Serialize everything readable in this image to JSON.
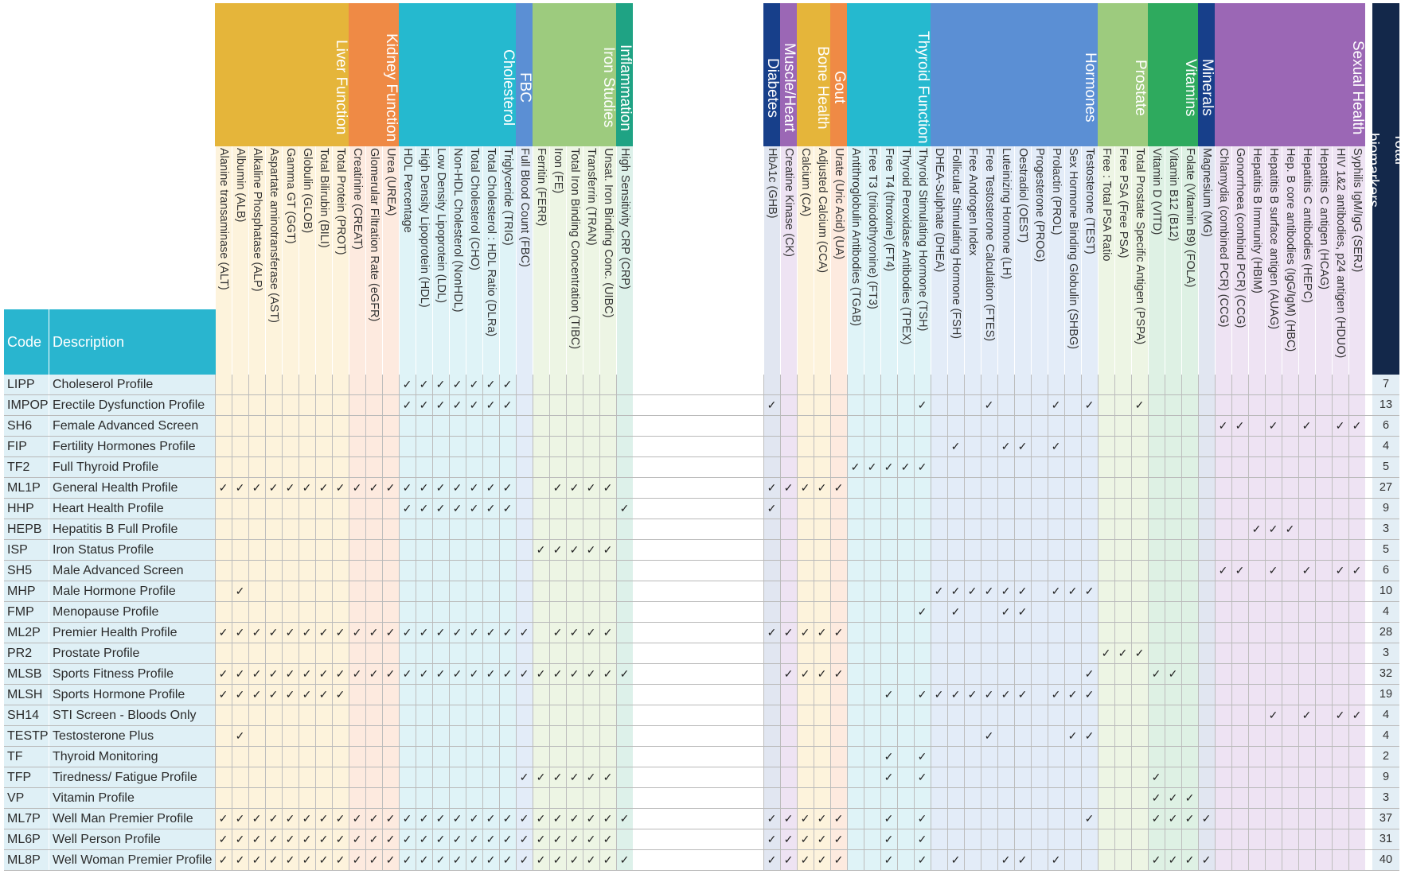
{
  "header": {
    "code": "Code",
    "description": "Description",
    "total_biomarkers": "Total biomarkers"
  },
  "check_mark": "✓",
  "groups": [
    {
      "name": "Liver Function",
      "color": "#E5B53A",
      "bg": "#FDF3DC",
      "cols": [
        "Alanine transaminase (ALT)",
        "Albumin (ALB)",
        "Alkaline Phosphatase (ALP)",
        "Aspartate aminotransferase (AST)",
        "Gamma GT (GGT)",
        "Globulin (GLOB)",
        "Total Bilirubin (BILI)",
        "Total Protein (PROT)"
      ]
    },
    {
      "name": "Kidney Function",
      "color": "#EF8A45",
      "bg": "#FDEADF",
      "cols": [
        "Creatinine (CREAT)",
        "Glomerular Filtration Rate (eGFR)",
        "Urea (UREA)"
      ]
    },
    {
      "name": "Cholesterol",
      "color": "#25B9CF",
      "bg": "#DFF3F7",
      "cols": [
        "HDL Percentage",
        "High Density Lipoprotein (HDL)",
        "Low Density Lipoprotein (LDL)",
        "Non-HDL Cholesterol (NonHDL)",
        "Total Cholesterol (CHO)",
        "Total Cholesterol : HDL Ratio (DLRa)",
        "Triglyceride (TRIG)"
      ]
    },
    {
      "name": "FBC",
      "color": "#5B8FD4",
      "bg": "#E3ECF8",
      "cols": [
        "Full Blood Count (FBC)"
      ]
    },
    {
      "name": "Iron Studies",
      "color": "#9DCB7E",
      "bg": "#EDF5E4",
      "cols": [
        "Ferritin (FERR)",
        "Iron (FE)",
        "Total Iron Binding Concentration (TIBC)",
        "Transferrin (TRAN)",
        "Unsat. Iron Binding Conc. (UIBC)"
      ]
    },
    {
      "name": "Inflammation",
      "color": "#1FA384",
      "bg": "#DDF1EA",
      "cols": [
        "High Sensitivity CRP (CRP)"
      ]
    },
    {
      "name": "",
      "color": "#ffffff",
      "bg": "#ffffff",
      "cols": [],
      "spacer": true
    },
    {
      "name": "Diabetes",
      "color": "#173F8A",
      "bg": "#E1E6F1",
      "cols": [
        "HbA1c (GHB)"
      ]
    },
    {
      "name": "Muscle/Heart Health",
      "color": "#9B67B5",
      "bg": "#EEE3F3",
      "cols": [
        "Creatine Kinase (CK)"
      ]
    },
    {
      "name": "Bone Health",
      "color": "#E5B53A",
      "bg": "#FDF3DC",
      "cols": [
        "Calcium (CA)",
        "Adjusted Calcium (CCA)"
      ]
    },
    {
      "name": "Gout",
      "color": "#EF8A45",
      "bg": "#FDEADF",
      "cols": [
        "Urate (Uric Acid) (UA)"
      ]
    },
    {
      "name": "Thyroid Function",
      "color": "#25B9CF",
      "bg": "#DFF3F7",
      "cols": [
        "Antithroglobulin Antibodies (TGAB)",
        "Free T3 (triiodothyronine) (FT3)",
        "Free T4 (throxine) (FT4)",
        "Thyroid Peroxidase Antibodies (TPEX)",
        "Thyroid Stimulating Hormone (TSH)"
      ]
    },
    {
      "name": "Hormones",
      "color": "#5B8FD4",
      "bg": "#E3ECF8",
      "cols": [
        "DHEA-Sulphate (DHEA)",
        "Follicular Stimulating Hormone (FSH)",
        "Free Androgen Index",
        "Free Testosterone Calculation (FTES)",
        "Luteinizing Hormone (LH)",
        "Oestradiol (OEST)",
        "Progesterone (PROG)",
        "Prolactin (PROL)",
        "Sex Hormone Binding Globulin (SHBG)",
        "Testosterone (TEST)"
      ]
    },
    {
      "name": "Prostate",
      "color": "#9DCB7E",
      "bg": "#EDF5E4",
      "cols": [
        "Free : Total PSA Ratio",
        "Free PSA (Free PSA)",
        "Total Prostate Specific Antigen (PSPA)"
      ]
    },
    {
      "name": "Vitamins",
      "color": "#2EAA5E",
      "bg": "#DEF1E4",
      "cols": [
        "Vitamin D (VITD)",
        "Vitamin B12 (B12)",
        "Folate (Vitamin B9) (FOLA)"
      ]
    },
    {
      "name": "Minerals",
      "color": "#173F8A",
      "bg": "#E1E6F1",
      "cols": [
        "Magnesium (MG)"
      ]
    },
    {
      "name": "Sexual Health",
      "color": "#9B67B5",
      "bg": "#EEE3F3",
      "cols": [
        "Chlamydia (combined PCR) (CCG)",
        "Gonorrhoea (combind PCR) (CCG)",
        "Hepatitis B Immunity (HBIM)",
        "Hepatitis B surface antigen (AUAG)",
        "Hep. B core antibodies (IgG/IgM) (HBC)",
        "Hepatitis C antibodies (HEPC)",
        "Hepatitis C antigen (HCAG)",
        "HIV 1&2 antibodies, p24 antigen (HDUO)",
        "Syphilis IgM/IgG (SERJ)"
      ]
    }
  ],
  "profiles": [
    {
      "code": "LIPP",
      "description": "Choleserol Profile",
      "total": "7",
      "checks": [
        11,
        12,
        13,
        14,
        15,
        16,
        17
      ]
    },
    {
      "code": "IMPOP",
      "description": "Erectile Dysfunction Profile",
      "total": "13",
      "checks": [
        11,
        12,
        13,
        14,
        15,
        16,
        17,
        25,
        34,
        38,
        42,
        44,
        47
      ]
    },
    {
      "code": "SH6",
      "description": "Female Advanced Screen",
      "total": "6",
      "checks": [
        52,
        53,
        55,
        57,
        59,
        60
      ]
    },
    {
      "code": "FIP",
      "description": "Fertility Hormones Profile",
      "total": "4",
      "checks": [
        36,
        39,
        40,
        42
      ]
    },
    {
      "code": "TF2",
      "description": "Full Thyroid Profile",
      "total": "5",
      "checks": [
        30,
        31,
        32,
        33,
        34
      ]
    },
    {
      "code": "ML1P",
      "description": "General Health Profile",
      "total": "27",
      "checks": [
        0,
        1,
        2,
        3,
        4,
        5,
        6,
        7,
        8,
        9,
        10,
        11,
        12,
        13,
        14,
        15,
        16,
        17,
        20,
        21,
        22,
        23,
        25,
        26,
        27,
        28,
        29
      ]
    },
    {
      "code": "HHP",
      "description": "Heart Health Profile",
      "total": "9",
      "checks": [
        11,
        12,
        13,
        14,
        15,
        16,
        17,
        24,
        25
      ]
    },
    {
      "code": "HEPB",
      "description": "Hepatitis B Full Profile",
      "total": "3",
      "checks": [
        54,
        55,
        56
      ]
    },
    {
      "code": "ISP",
      "description": "Iron Status Profile",
      "total": "5",
      "checks": [
        19,
        20,
        21,
        22,
        23
      ]
    },
    {
      "code": "SH5",
      "description": "Male Advanced Screen",
      "total": "6",
      "checks": [
        52,
        53,
        55,
        57,
        59,
        60
      ]
    },
    {
      "code": "MHP",
      "description": "Male Hormone Profile",
      "total": "10",
      "checks": [
        1,
        35,
        36,
        37,
        38,
        39,
        40,
        42,
        43,
        44
      ]
    },
    {
      "code": "FMP",
      "description": "Menopause Profile",
      "total": "4",
      "checks": [
        34,
        36,
        39,
        40
      ]
    },
    {
      "code": "ML2P",
      "description": "Premier Health Profile",
      "total": "28",
      "checks": [
        0,
        1,
        2,
        3,
        4,
        5,
        6,
        7,
        8,
        9,
        10,
        11,
        12,
        13,
        14,
        15,
        16,
        17,
        18,
        20,
        21,
        22,
        23,
        25,
        26,
        27,
        28,
        29
      ]
    },
    {
      "code": "PR2",
      "description": "Prostate Profile",
      "total": "3",
      "checks": [
        45,
        46,
        47
      ]
    },
    {
      "code": "MLSB",
      "description": "Sports Fitness Profile",
      "total": "32",
      "checks": [
        0,
        1,
        2,
        3,
        4,
        5,
        6,
        7,
        8,
        9,
        10,
        11,
        12,
        13,
        14,
        15,
        16,
        17,
        18,
        19,
        20,
        21,
        22,
        23,
        24,
        26,
        27,
        28,
        29,
        44,
        48,
        49
      ]
    },
    {
      "code": "MLSH",
      "description": "Sports Hormone Profile",
      "total": "19",
      "checks": [
        0,
        1,
        2,
        3,
        4,
        5,
        6,
        7,
        32,
        34,
        35,
        36,
        37,
        38,
        39,
        40,
        42,
        43,
        44
      ]
    },
    {
      "code": "SH14",
      "description": "STI Screen - Bloods Only",
      "total": "4",
      "checks": [
        55,
        57,
        59,
        60
      ]
    },
    {
      "code": "TESTP",
      "description": "Testosterone Plus",
      "total": "4",
      "checks": [
        1,
        38,
        43,
        44
      ]
    },
    {
      "code": "TF",
      "description": "Thyroid Monitoring",
      "total": "2",
      "checks": [
        32,
        34
      ]
    },
    {
      "code": "TFP",
      "description": "Tiredness/ Fatigue Profile",
      "total": "9",
      "checks": [
        18,
        19,
        20,
        21,
        22,
        23,
        32,
        34,
        48
      ]
    },
    {
      "code": "VP",
      "description": "Vitamin Profile",
      "total": "3",
      "checks": [
        48,
        49,
        50
      ]
    },
    {
      "code": "ML7P",
      "description": "Well Man Premier Profile",
      "total": "37",
      "checks": [
        0,
        1,
        2,
        3,
        4,
        5,
        6,
        7,
        8,
        9,
        10,
        11,
        12,
        13,
        14,
        15,
        16,
        17,
        18,
        19,
        20,
        21,
        22,
        23,
        24,
        25,
        26,
        27,
        28,
        29,
        32,
        34,
        44,
        48,
        49,
        50,
        51
      ]
    },
    {
      "code": "ML6P",
      "description": "Well Person Profile",
      "total": "31",
      "checks": [
        0,
        1,
        2,
        3,
        4,
        5,
        6,
        7,
        8,
        9,
        10,
        11,
        12,
        13,
        14,
        15,
        16,
        17,
        18,
        19,
        20,
        21,
        22,
        23,
        25,
        26,
        27,
        28,
        29,
        32,
        34
      ]
    },
    {
      "code": "ML8P",
      "description": "Well Woman Premier Profile",
      "total": "40",
      "checks": [
        0,
        1,
        2,
        3,
        4,
        5,
        6,
        7,
        8,
        9,
        10,
        11,
        12,
        13,
        14,
        15,
        16,
        17,
        18,
        19,
        20,
        21,
        22,
        23,
        24,
        25,
        26,
        27,
        28,
        29,
        32,
        34,
        36,
        39,
        40,
        42,
        48,
        49,
        50,
        51
      ]
    }
  ],
  "colors": {
    "header_teal": "#29B5CF",
    "code_bg": "#DFF0F6",
    "row_line": "#B9B9B9",
    "total_header": "#13284A",
    "total_bg": "#E3EEF5"
  }
}
